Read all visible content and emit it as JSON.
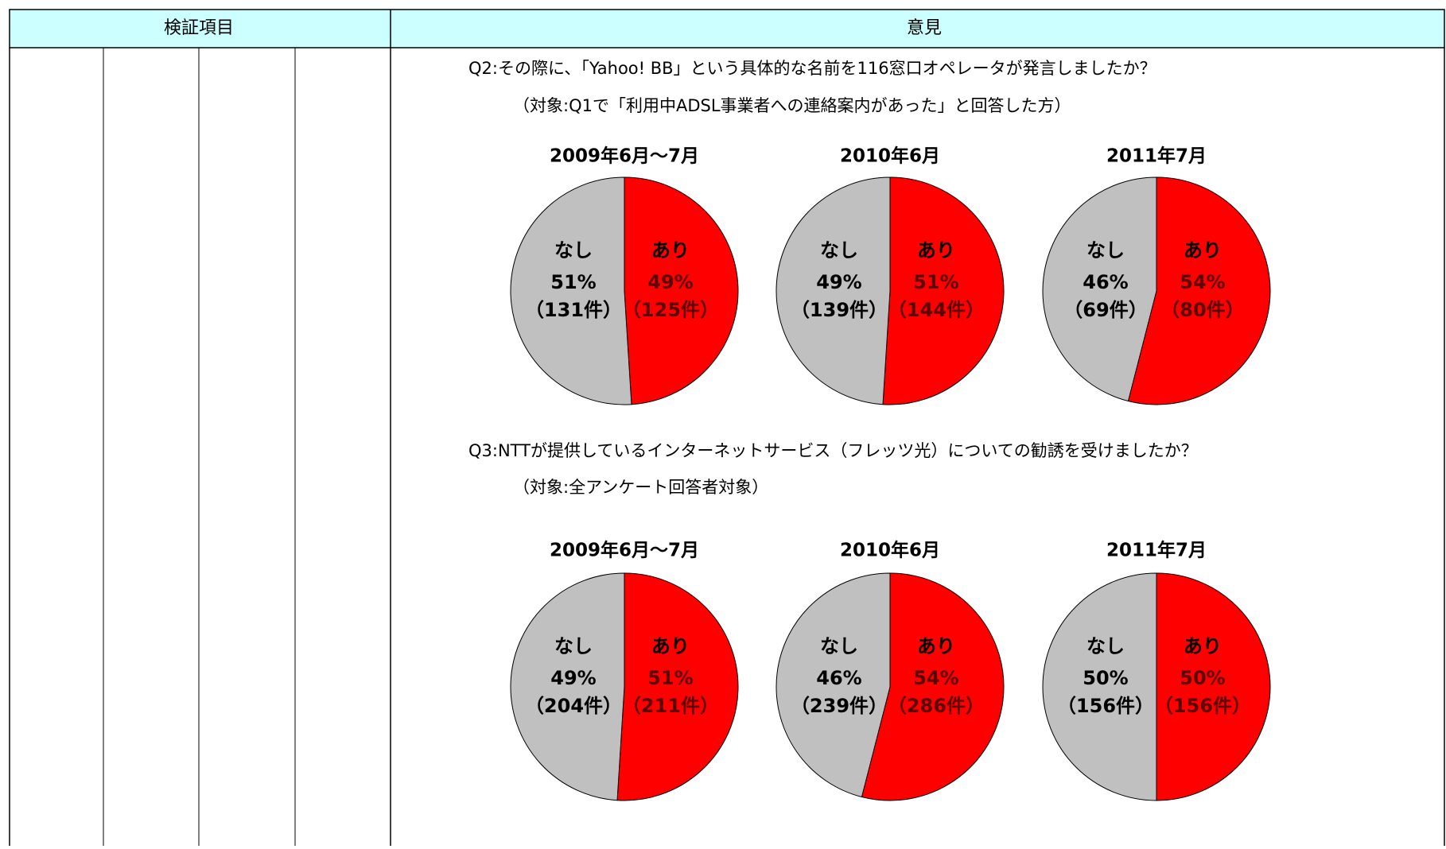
{
  "header": [
    "検証項目",
    "意見"
  ],
  "sections": [
    {
      "question": "Q2:その際に、「Yahoo! BB」という具体的な名前を116窓口オペレータが発言しましたか？",
      "target": "（対象:Q1で「利用中ADSL事業者への連絡案内があった」と回答した方）",
      "charts": [
        {
          "type": "pie",
          "title": "2009年6月～7月",
          "categories": [
            "なし",
            "あり"
          ],
          "values": [
            51,
            49
          ],
          "value_labels": [
            "51%",
            "49%"
          ],
          "count_labels": [
            "（131件）",
            "（125件）"
          ],
          "colors": [
            "#c0c0c0",
            "#ff0000"
          ]
        },
        {
          "type": "pie",
          "title": "2010年6月",
          "categories": [
            "なし",
            "あり"
          ],
          "values": [
            49,
            51
          ],
          "value_labels": [
            "49%",
            "51%"
          ],
          "count_labels": [
            "（139件）",
            "（144件）"
          ],
          "colors": [
            "#c0c0c0",
            "#ff0000"
          ]
        },
        {
          "type": "pie",
          "title": "2011年7月",
          "categories": [
            "なし",
            "あり"
          ],
          "values": [
            46,
            54
          ],
          "value_labels": [
            "46%",
            "54%"
          ],
          "count_labels": [
            "（69件）",
            "（80件）"
          ],
          "colors": [
            "#c0c0c0",
            "#ff0000"
          ]
        }
      ]
    },
    {
      "question": "Q3:NTTが提供しているインターネットサービス（フレッツ光）についての勧誘を受けましたか？",
      "target": "（対象:全アンケート回答者対象）",
      "charts": [
        {
          "type": "pie",
          "title": "2009年6月～7月",
          "categories": [
            "なし",
            "あり"
          ],
          "values": [
            49,
            51
          ],
          "value_labels": [
            "49%",
            "51%"
          ],
          "count_labels": [
            "（204件）",
            "（211件）"
          ],
          "colors": [
            "#c0c0c0",
            "#ff0000"
          ]
        },
        {
          "type": "pie",
          "title": "2010年6月",
          "categories": [
            "なし",
            "あり"
          ],
          "values": [
            46,
            54
          ],
          "value_labels": [
            "46%",
            "54%"
          ],
          "count_labels": [
            "（239件）",
            "（286件）"
          ],
          "colors": [
            "#c0c0c0",
            "#ff0000"
          ]
        },
        {
          "type": "pie",
          "title": "2011年7月",
          "categories": [
            "なし",
            "あり"
          ],
          "values": [
            50,
            50
          ],
          "value_labels": [
            "50%",
            "50%"
          ],
          "count_labels": [
            "（156件）",
            "（156件）"
          ],
          "colors": [
            "#c0c0c0",
            "#ff0000"
          ]
        }
      ]
    }
  ]
}
